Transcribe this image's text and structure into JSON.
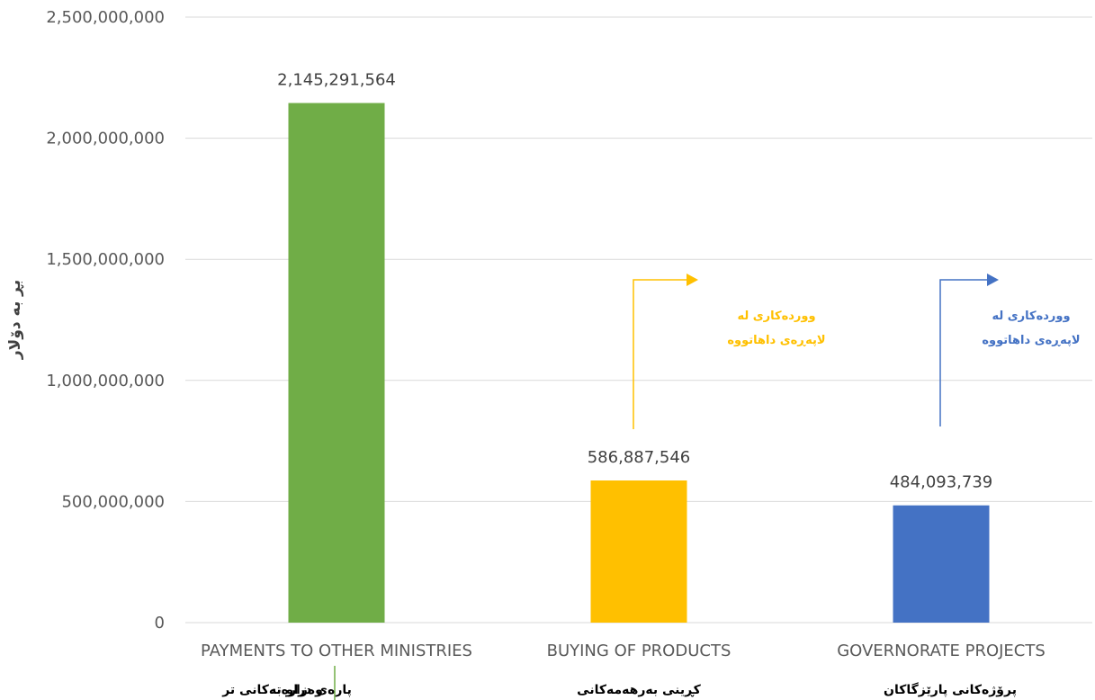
{
  "chart_data": {
    "type": "bar",
    "title": "",
    "ylabel": "بڕ بە دۆلار",
    "ylim": [
      0,
      2500000000
    ],
    "yticks": [
      0,
      500000000,
      1000000000,
      1500000000,
      2000000000,
      2500000000
    ],
    "ytick_labels": [
      "0",
      "500,000,000",
      "1,000,000,000",
      "1,500,000,000",
      "2,000,000,000",
      "2,500,000,000"
    ],
    "grid": true,
    "categories": [
      "PAYMENTS TO OTHER MINISTRIES",
      "BUYING OF PRODUCTS",
      "GOVERNORATE PROJECTS"
    ],
    "values": [
      2145291564,
      586887546,
      484093739
    ],
    "data_labels": [
      "2,145,291,564",
      "586,887,546",
      "484,093,739"
    ],
    "bar_colors": [
      "#70ad47",
      "#ffc000",
      "#4472c4"
    ],
    "kurdish_labels": [
      {
        "part1": "پارەی دراو بە",
        "part2": "وەزارەتەکانی تر"
      },
      {
        "part1": "کڕینی بەرهەمەکانی"
      },
      {
        "part1": "پرۆژەکانی پارێزگاکان"
      }
    ],
    "annotations": [
      {
        "line1": "ووردەکاری لە",
        "line2": "لاپەڕەی داهاتووە",
        "color": "#ffc000",
        "category": "BUYING OF PRODUCTS"
      },
      {
        "line1": "ووردەکاری لە",
        "line2": "لاپەڕەی داهاتووە",
        "color": "#4472c4",
        "category": "GOVERNORATE PROJECTS"
      }
    ]
  }
}
